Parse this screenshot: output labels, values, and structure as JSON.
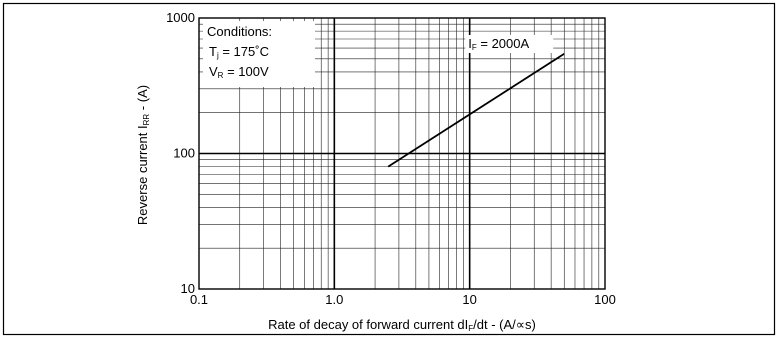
{
  "chart_data": {
    "type": "line",
    "x_scale": "log",
    "y_scale": "log",
    "xlim": [
      0.1,
      100
    ],
    "ylim": [
      10,
      1000
    ],
    "x_ticks": [
      {
        "value": 0.1,
        "label": "0.1"
      },
      {
        "value": 1,
        "label": "1.0"
      },
      {
        "value": 10,
        "label": "10"
      },
      {
        "value": 100,
        "label": "100"
      }
    ],
    "y_ticks": [
      {
        "value": 10,
        "label": "10"
      },
      {
        "value": 100,
        "label": "100"
      },
      {
        "value": 1000,
        "label": "1000"
      }
    ],
    "xlabel": {
      "pre": "Rate of decay of forward current dI",
      "sub": "F",
      "post": "/dt - (A/∝s)"
    },
    "ylabel": {
      "pre": "Reverse current I",
      "sub": "RR",
      "post": " - (A)"
    },
    "conditions": {
      "title": "Conditions:",
      "lines": [
        {
          "sym": "T",
          "sub": "j",
          "rest": " = 175˚C"
        },
        {
          "sym": "V",
          "sub": "R",
          "rest": " = 100V"
        }
      ]
    },
    "series": [
      {
        "label": {
          "sym": "I",
          "sub": "F",
          "rest": " = 2000A"
        },
        "x": [
          2.5,
          50
        ],
        "y": [
          80,
          545
        ]
      }
    ],
    "grid": true
  }
}
